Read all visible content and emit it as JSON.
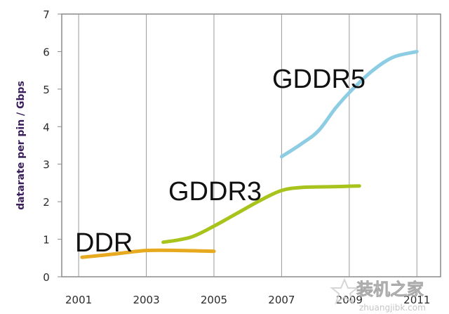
{
  "chart_data": {
    "type": "line",
    "xlabel": "",
    "ylabel": "datarate per pin / Gbps",
    "xlim": [
      2000.5,
      2011.7
    ],
    "ylim": [
      0,
      7
    ],
    "xticks": [
      2001,
      2003,
      2005,
      2007,
      2009,
      2011
    ],
    "xtick_labels": [
      "2001",
      "2003",
      "2005",
      "2007",
      "2009",
      "2011"
    ],
    "yticks": [
      0,
      1,
      2,
      3,
      4,
      5,
      6,
      7
    ],
    "ytick_labels": [
      "0",
      "1",
      "2",
      "3",
      "4",
      "5",
      "6",
      "7"
    ],
    "grid": "vertical",
    "series": [
      {
        "name": "DDR",
        "color": "#e6a91f",
        "points": [
          [
            2001.1,
            0.52
          ],
          [
            2002.0,
            0.6
          ],
          [
            2003.0,
            0.7
          ],
          [
            2004.0,
            0.7
          ],
          [
            2005.0,
            0.68
          ]
        ]
      },
      {
        "name": "GDDR3",
        "color": "#a8c31c",
        "points": [
          [
            2003.5,
            0.92
          ],
          [
            2004.3,
            1.05
          ],
          [
            2005.0,
            1.35
          ],
          [
            2005.7,
            1.7
          ],
          [
            2006.4,
            2.05
          ],
          [
            2007.0,
            2.3
          ],
          [
            2007.6,
            2.38
          ],
          [
            2008.5,
            2.4
          ],
          [
            2009.3,
            2.42
          ]
        ]
      },
      {
        "name": "GDDR5",
        "color": "#8ccde3",
        "points": [
          [
            2007.0,
            3.2
          ],
          [
            2007.6,
            3.55
          ],
          [
            2008.1,
            3.9
          ],
          [
            2008.6,
            4.5
          ],
          [
            2009.1,
            5.0
          ],
          [
            2009.7,
            5.5
          ],
          [
            2010.3,
            5.85
          ],
          [
            2011.0,
            6.0
          ]
        ]
      }
    ]
  },
  "watermark": {
    "text": "装机之家",
    "url": "zhuangjibk.com"
  }
}
